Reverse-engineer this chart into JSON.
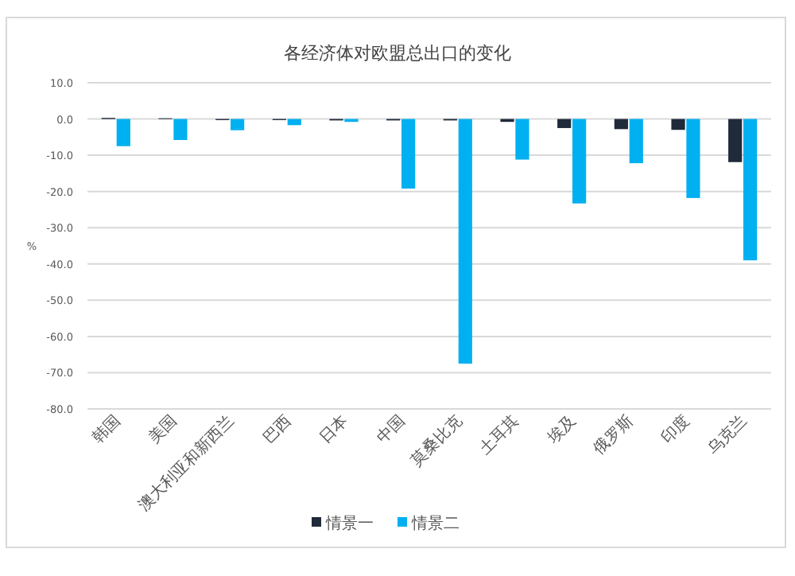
{
  "chart_data": {
    "type": "bar",
    "title": "各经济体对欧盟总出口的变化",
    "ylabel": "%",
    "categories": [
      "韩国",
      "美国",
      "澳大利亚和新西兰",
      "巴西",
      "日本",
      "中国",
      "莫桑比克",
      "土耳其",
      "埃及",
      "俄罗斯",
      "印度",
      "乌克兰"
    ],
    "series": [
      {
        "name": "情景一",
        "color": "#1f2a3a",
        "values": [
          0.3,
          0.2,
          -0.3,
          -0.3,
          -0.4,
          -0.4,
          -0.4,
          -0.8,
          -2.5,
          -2.8,
          -3.0,
          -11.9
        ]
      },
      {
        "name": "情景二",
        "color": "#00b0f0",
        "values": [
          -7.5,
          -5.8,
          -3.1,
          -1.7,
          -0.8,
          -19.2,
          -67.5,
          -11.2,
          -23.3,
          -12.2,
          -21.8,
          -39.0
        ]
      }
    ],
    "ylim": [
      -80,
      10
    ],
    "yticks": [
      {
        "value": 10,
        "label": "10.0"
      },
      {
        "value": 0,
        "label": "0.0"
      },
      {
        "value": -10,
        "label": "-10.0"
      },
      {
        "value": -20,
        "label": "-20.0"
      },
      {
        "value": -30,
        "label": "-30.0"
      },
      {
        "value": -40,
        "label": "-40.0"
      },
      {
        "value": -50,
        "label": "-50.0"
      },
      {
        "value": -60,
        "label": "-60.0"
      },
      {
        "value": -70,
        "label": "-70.0"
      },
      {
        "value": -80,
        "label": "-80.0"
      }
    ],
    "grid": "y",
    "legend": "bottom"
  }
}
